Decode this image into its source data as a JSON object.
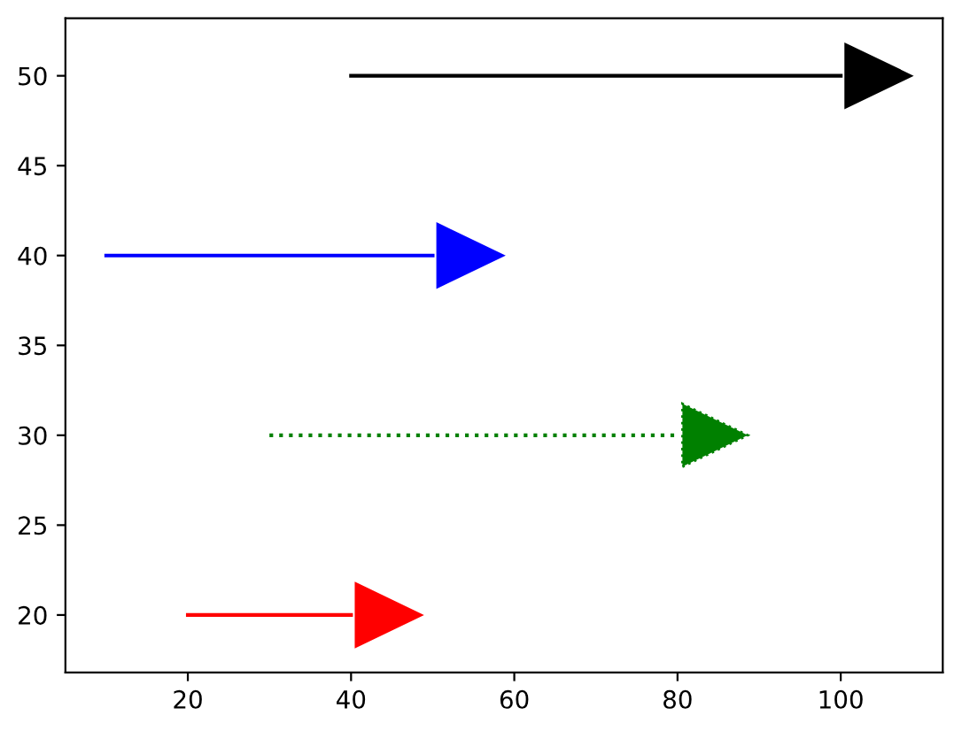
{
  "chart_data": {
    "type": "line",
    "marker": "none",
    "grid": false,
    "xlim": [
      5,
      112.5
    ],
    "ylim": [
      16.8,
      53.2
    ],
    "xticks": [
      20,
      40,
      60,
      80,
      100
    ],
    "yticks": [
      20,
      25,
      30,
      35,
      40,
      45,
      50
    ],
    "series": [
      {
        "color": "#000000",
        "x": [
          40,
          100
        ],
        "values": [
          50,
          50
        ],
        "line_style": "solid"
      },
      {
        "color": "#0000ff",
        "x": [
          10,
          50
        ],
        "values": [
          40,
          40
        ],
        "line_style": "solid"
      },
      {
        "color": "#008000",
        "x": [
          30,
          80
        ],
        "values": [
          30,
          30
        ],
        "line_style": "dotted"
      },
      {
        "color": "#ff0000",
        "x": [
          20,
          40
        ],
        "values": [
          20,
          20
        ],
        "line_style": "solid"
      }
    ]
  }
}
